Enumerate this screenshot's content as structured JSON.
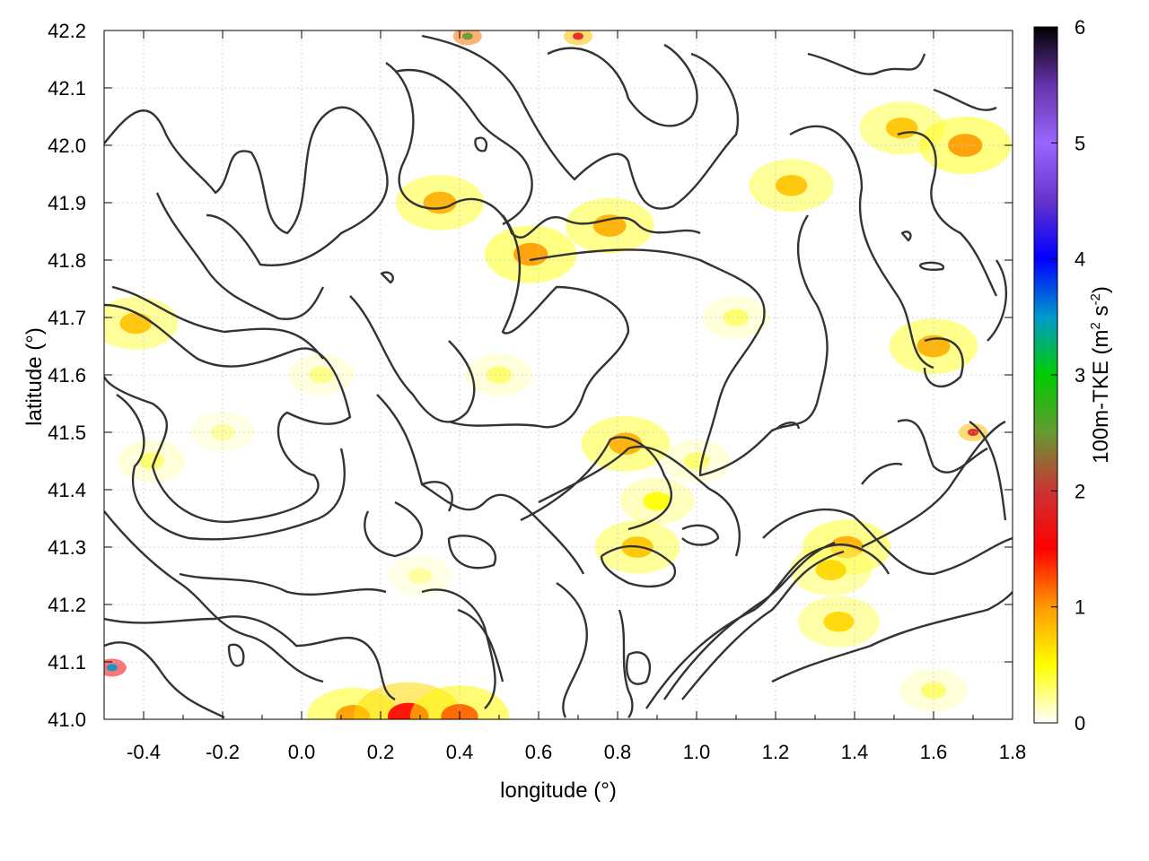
{
  "chart_data": {
    "type": "heatmap",
    "xlabel": "longitude (°)",
    "ylabel": "latitude (°)",
    "colorbar_label_main": "100m-TKE (m",
    "colorbar_label_sup1": "2",
    "colorbar_label_mid": " s",
    "colorbar_label_sup2": "-2",
    "colorbar_label_end": ")",
    "xlim": [
      -0.5,
      1.8
    ],
    "ylim": [
      41.0,
      42.2
    ],
    "x_ticks": [
      -0.4,
      -0.2,
      0.0,
      0.2,
      0.4,
      0.6,
      0.8,
      1.0,
      1.2,
      1.4,
      1.6,
      1.8
    ],
    "x_tick_labels": [
      "-0.4",
      "-0.2",
      "0.0",
      "0.2",
      "0.4",
      "0.6",
      "0.8",
      "1.0",
      "1.2",
      "1.4",
      "1.6",
      "1.8"
    ],
    "y_ticks": [
      41.0,
      41.1,
      41.2,
      41.3,
      41.4,
      41.5,
      41.6,
      41.7,
      41.8,
      41.9,
      42.0,
      42.1,
      42.2
    ],
    "y_tick_labels": [
      "41.0",
      "41.1",
      "41.2",
      "41.3",
      "41.4",
      "41.5",
      "41.6",
      "41.7",
      "41.8",
      "41.9",
      "42.0",
      "42.1",
      "42.2"
    ],
    "colorbar_range": [
      0,
      6
    ],
    "colorbar_ticks": [
      0,
      1,
      2,
      3,
      4,
      5,
      6
    ],
    "colorbar_tick_labels": [
      "0",
      "1",
      "2",
      "3",
      "4",
      "5",
      "6"
    ],
    "colormap": [
      "#ffffff",
      "#ffff00",
      "#ff9900",
      "#ff0000",
      "#cc3333",
      "#669933",
      "#00cc00",
      "#0099cc",
      "#0000ff",
      "#6633cc",
      "#9966ff",
      "#6633aa",
      "#000000"
    ],
    "grid": true,
    "contour_color": "#333333",
    "hotspots": [
      {
        "lon": -0.38,
        "lat": 41.45,
        "tke": 0.3
      },
      {
        "lon": -0.2,
        "lat": 41.5,
        "tke": 0.2
      },
      {
        "lon": 0.05,
        "lat": 41.6,
        "tke": 0.25
      },
      {
        "lon": -0.42,
        "lat": 41.69,
        "tke": 0.8
      },
      {
        "lon": 0.82,
        "lat": 41.48,
        "tke": 0.9
      },
      {
        "lon": 0.9,
        "lat": 41.38,
        "tke": 0.5
      },
      {
        "lon": 0.58,
        "lat": 41.81,
        "tke": 1.0
      },
      {
        "lon": 0.78,
        "lat": 41.86,
        "tke": 0.9
      },
      {
        "lon": 0.35,
        "lat": 41.9,
        "tke": 0.9
      },
      {
        "lon": 1.24,
        "lat": 41.93,
        "tke": 0.8
      },
      {
        "lon": 1.52,
        "lat": 42.03,
        "tke": 0.8
      },
      {
        "lon": 1.68,
        "lat": 42.0,
        "tke": 1.0
      },
      {
        "lon": 1.6,
        "lat": 41.65,
        "tke": 0.9
      },
      {
        "lon": 1.7,
        "lat": 41.5,
        "tke": 1.8
      },
      {
        "lon": 1.38,
        "lat": 41.3,
        "tke": 0.9
      },
      {
        "lon": 1.34,
        "lat": 41.26,
        "tke": 0.7
      },
      {
        "lon": 1.36,
        "lat": 41.17,
        "tke": 0.7
      },
      {
        "lon": 1.6,
        "lat": 41.05,
        "tke": 0.3
      },
      {
        "lon": 0.85,
        "lat": 41.3,
        "tke": 0.8
      },
      {
        "lon": 0.5,
        "lat": 41.6,
        "tke": 0.3
      },
      {
        "lon": 1.1,
        "lat": 41.7,
        "tke": 0.3
      },
      {
        "lon": -0.48,
        "lat": 41.09,
        "tke": 3.5
      },
      {
        "lon": 0.42,
        "lat": 42.19,
        "tke": 2.5
      },
      {
        "lon": 0.7,
        "lat": 42.19,
        "tke": 1.8
      },
      {
        "lon": 0.13,
        "lat": 41.005,
        "tke": 1.0
      },
      {
        "lon": 0.27,
        "lat": 41.005,
        "tke": 1.5
      },
      {
        "lon": 0.4,
        "lat": 41.005,
        "tke": 1.2
      },
      {
        "lon": 1.0,
        "lat": 41.45,
        "tke": 0.3
      },
      {
        "lon": 0.3,
        "lat": 41.25,
        "tke": 0.2
      }
    ]
  }
}
